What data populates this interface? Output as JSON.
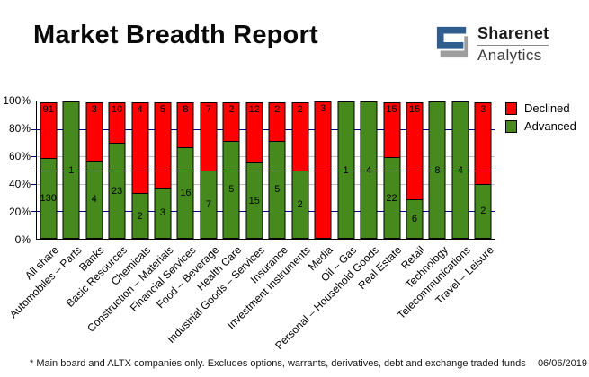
{
  "header": {
    "title": "Market Breadth Report",
    "brand": {
      "name": "Sharenet",
      "subtitle": "Analytics"
    }
  },
  "icons": {
    "brand_mark": "sharenet-s-logo"
  },
  "colors": {
    "declined": "#ff0000",
    "advanced": "#468a1e",
    "grid_navy": "#000080",
    "grid_gray": "#c0c0c0",
    "reference_line": "#000000",
    "logo_blue": "#2e5e8d",
    "logo_gray": "#9e9e9e"
  },
  "chart_data": {
    "type": "bar",
    "stacked": true,
    "normalized_to_percent": true,
    "title": "",
    "xlabel": "",
    "ylabel": "",
    "ylim": [
      0,
      100
    ],
    "yticks": [
      "0%",
      "20%",
      "40%",
      "60%",
      "80%",
      "100%"
    ],
    "grid": true,
    "reference_line_percent": 50,
    "legend_position": "right",
    "categories": [
      "All share",
      "Automobiles – Parts",
      "Banks",
      "Basic Resources",
      "Chemicals",
      "Construction – Materials",
      "Financial Services",
      "Food – Beverage",
      "Health Care",
      "Industrial Goods – Services",
      "Insurance",
      "Investment Instruments",
      "Media",
      "Oil – Gas",
      "Personal – Household Goods",
      "Real Estate",
      "Retail",
      "Technology",
      "Telecommunications",
      "Travel – Leisure"
    ],
    "series": [
      {
        "name": "Declined",
        "color": "#ff0000",
        "values": [
          91,
          0,
          3,
          10,
          4,
          5,
          8,
          7,
          2,
          12,
          2,
          2,
          3,
          0,
          0,
          15,
          15,
          0,
          0,
          3
        ]
      },
      {
        "name": "Advanced",
        "color": "#468a1e",
        "values": [
          130,
          1,
          4,
          23,
          2,
          3,
          16,
          7,
          5,
          15,
          5,
          2,
          0,
          1,
          4,
          22,
          6,
          8,
          4,
          2
        ]
      }
    ]
  },
  "footer": {
    "note": "* Main board and ALTX companies only. Excludes options, warrants, derivatives, debt and exchange traded funds",
    "date": "06/06/2019"
  }
}
